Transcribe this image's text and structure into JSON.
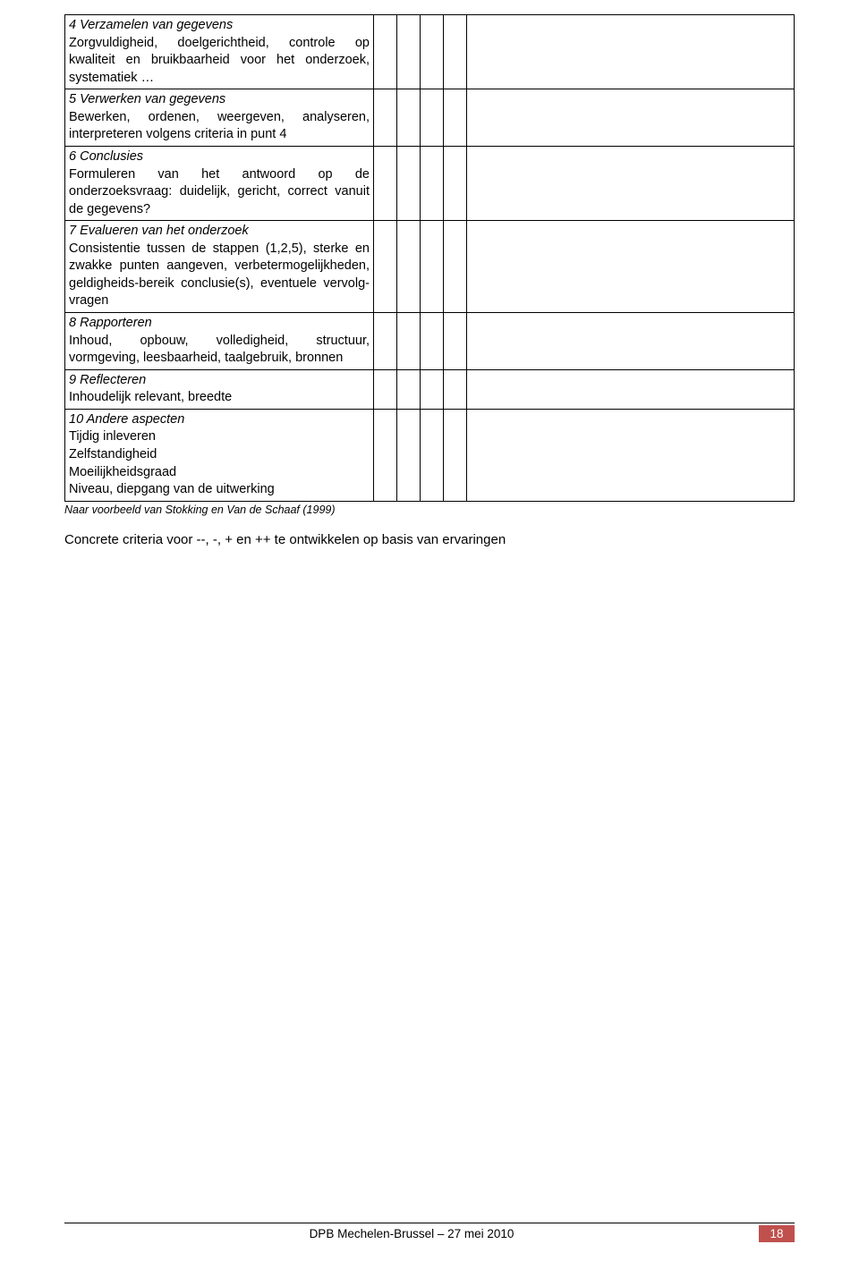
{
  "table": {
    "colwidths": {
      "desc": 345,
      "check": 26
    },
    "rows": [
      {
        "title": "4 Verzamelen van gegevens",
        "body": "Zorgvuldigheid, doelgerichtheid, controle op kwaliteit en bruikbaarheid voor het onderzoek, systematiek …"
      },
      {
        "title": "5 Verwerken van gegevens",
        "body": "Bewerken, ordenen, weergeven, analyseren, interpreteren volgens criteria in punt 4"
      },
      {
        "title": "6 Conclusies",
        "body": "Formuleren van het antwoord op de onderzoeksvraag: duidelijk, gericht, correct vanuit de gegevens?"
      },
      {
        "title": "7 Evalueren van het onderzoek",
        "body": "Consistentie tussen de stappen (1,2,5), sterke en zwakke punten aangeven, verbetermogelijkheden, geldigheids-bereik conclusie(s), eventuele vervolg-vragen"
      },
      {
        "title": "8 Rapporteren",
        "body": "Inhoud, opbouw, volledigheid, structuur, vormgeving, leesbaarheid, taalgebruik, bronnen"
      },
      {
        "title": "9 Reflecteren",
        "body": "Inhoudelijk relevant, breedte"
      },
      {
        "title": "10 Andere aspecten",
        "body": "Tijdig inleveren\nZelfstandigheid\nMoeilijkheidsgraad\nNiveau, diepgang van de uitwerking"
      }
    ]
  },
  "citation": "Naar voorbeeld van Stokking en Van de Schaaf (1999)",
  "note": "Concrete criteria voor --, -, + en ++ te ontwikkelen op basis van ervaringen",
  "footer": {
    "text": "DPB Mechelen-Brussel – 27 mei 2010",
    "page": "18",
    "badge_bg": "#c0504d",
    "badge_fg": "#ffffff"
  }
}
